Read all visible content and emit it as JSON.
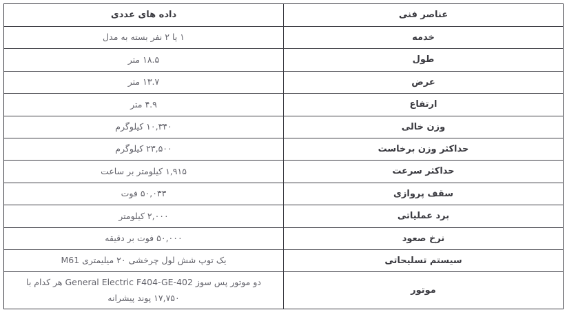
{
  "page": {
    "background_color": "#ffffff",
    "border_color": "#3c3c43",
    "label_text_color": "#3b3b41",
    "value_text_color": "#63636b"
  },
  "table": {
    "type": "table",
    "header": {
      "elements_column": "عناصر فنی",
      "data_column": "داده های عددی"
    },
    "rows": [
      {
        "label": "خدمه",
        "value": "۱ یا ۲ نفر بسته به مدل"
      },
      {
        "label": "طول",
        "value": "۱۸.۵ متر"
      },
      {
        "label": "عرض",
        "value": "۱۳.۷ متر"
      },
      {
        "label": "ارتفاع",
        "value": "۴.۹ متر"
      },
      {
        "label": "وزن خالی",
        "value": "۱۰,۳۴۰ کیلوگرم"
      },
      {
        "label": "حداکثر وزن برخاست",
        "value": "۲۳,۵۰۰ کیلوگرم"
      },
      {
        "label": "حداکثر سرعت",
        "value": "۱,۹۱۵ کیلومتر بر ساعت"
      },
      {
        "label": "سقف پروازی",
        "value": "۵۰,۰۳۳ فوت"
      },
      {
        "label": "برد عملیاتی",
        "value": "۲,۰۰۰ کیلومتر"
      },
      {
        "label": "نرخ صعود",
        "value": "۵۰,۰۰۰ فوت بر دقیقه"
      },
      {
        "label": "سیستم تسلیحاتی",
        "value": "یک توپ شش لول چرخشی ۲۰ میلیمتری M61"
      },
      {
        "label": "موتور",
        "value": "دو موتور پس سوز General Electric F404-GE-402 هر کدام با ۱۷,۷۵۰ پوند پیشرانه"
      }
    ]
  }
}
